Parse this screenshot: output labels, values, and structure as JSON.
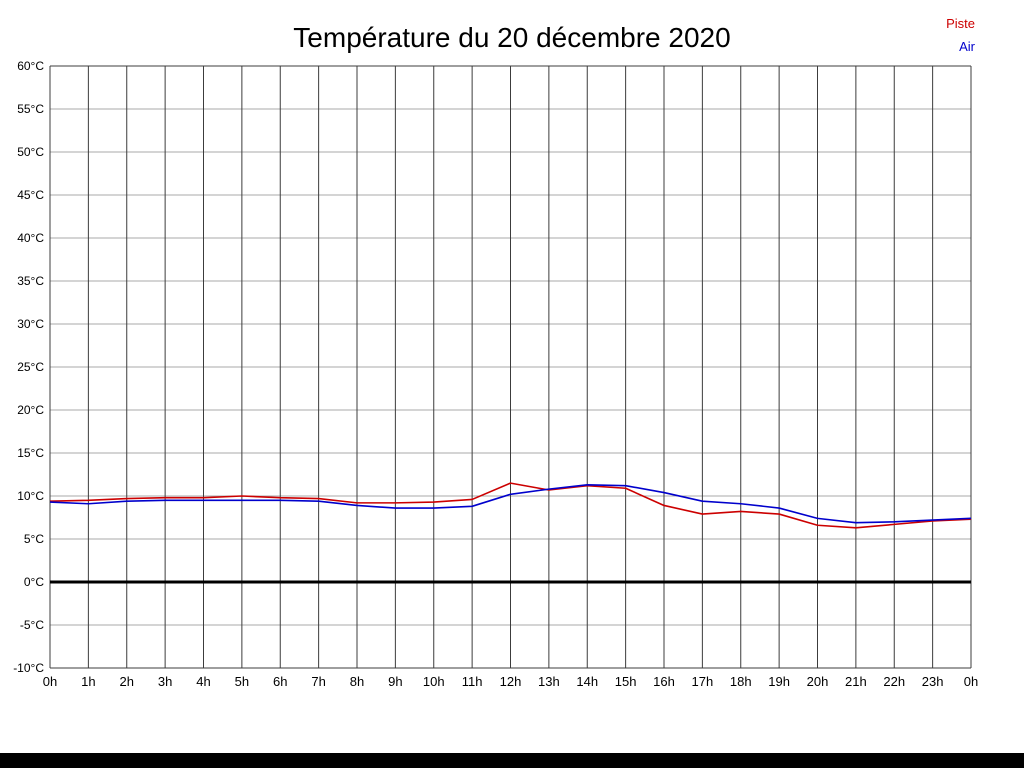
{
  "page": {
    "title": "Température du 20 décembre 2020"
  },
  "legend": [
    {
      "label": "Piste",
      "color": "#cc0000"
    },
    {
      "label": "Air",
      "color": "#0000cc"
    }
  ],
  "chart_data": {
    "type": "line",
    "title": "Température du 20 décembre 2020",
    "categories": [
      "0h",
      "1h",
      "2h",
      "3h",
      "4h",
      "5h",
      "6h",
      "7h",
      "8h",
      "9h",
      "10h",
      "11h",
      "12h",
      "13h",
      "14h",
      "15h",
      "16h",
      "17h",
      "18h",
      "19h",
      "20h",
      "21h",
      "22h",
      "23h",
      "0h"
    ],
    "series": [
      {
        "name": "Piste",
        "color": "#cc0000",
        "values": [
          9.4,
          9.5,
          9.7,
          9.8,
          9.8,
          10.0,
          9.8,
          9.7,
          9.2,
          9.2,
          9.3,
          9.6,
          11.5,
          10.7,
          11.2,
          10.9,
          8.9,
          7.9,
          8.2,
          7.9,
          6.6,
          6.3,
          6.7,
          7.1,
          7.3
        ]
      },
      {
        "name": "Air",
        "color": "#0000cc",
        "values": [
          9.3,
          9.1,
          9.4,
          9.5,
          9.5,
          9.5,
          9.5,
          9.4,
          8.9,
          8.6,
          8.6,
          8.8,
          10.2,
          10.8,
          11.3,
          11.2,
          10.4,
          9.4,
          9.1,
          8.6,
          7.4,
          6.9,
          7.0,
          7.2,
          7.4
        ]
      }
    ],
    "xlabel": "",
    "ylabel": "",
    "ylim": [
      -10,
      60
    ],
    "y_step": 5,
    "y_tick_suffix": "°C",
    "grid": true,
    "zero_line": true,
    "legend_position": "top-right"
  }
}
